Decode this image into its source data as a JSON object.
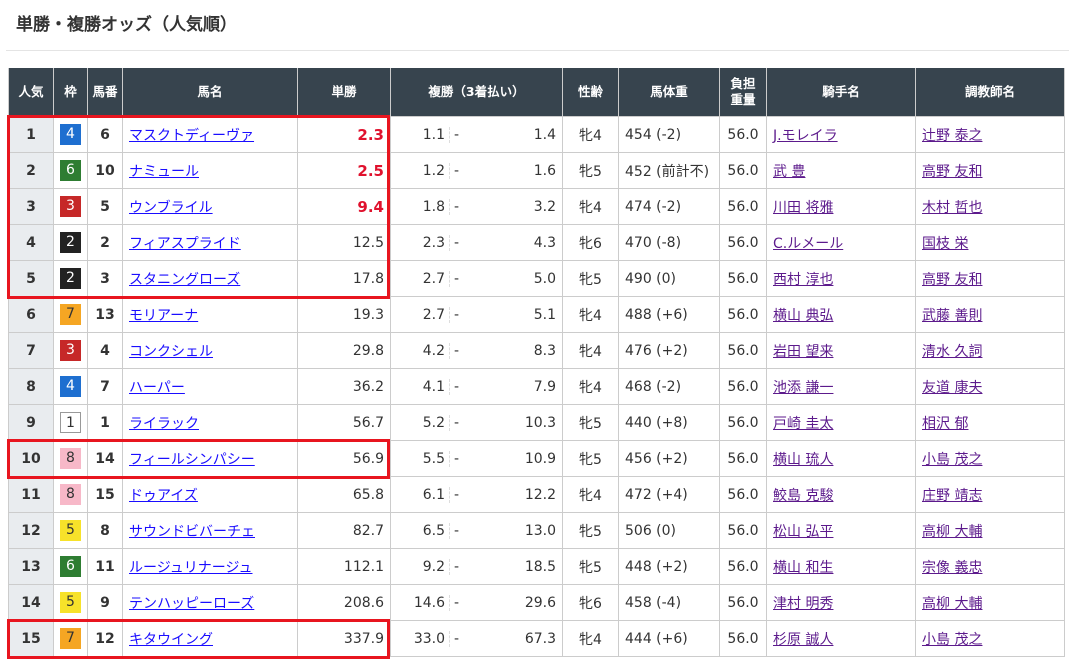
{
  "title": "単勝・複勝オッズ（人気順）",
  "headers": {
    "pop": "人気",
    "waku": "枠",
    "num": "馬番",
    "name": "馬名",
    "win": "単勝",
    "place": "複勝（3着払い）",
    "sexage": "性齢",
    "weight": "馬体重",
    "load1": "負担",
    "load2": "重量",
    "jockey": "騎手名",
    "trainer": "調教師名"
  },
  "waku_colors": {
    "1": "#ffffff",
    "2": "#222222",
    "3": "#c62828",
    "4": "#1e6fd0",
    "5": "#f7e22a",
    "6": "#2e7d32",
    "7": "#f5a623",
    "8": "#f7b8c8"
  },
  "highlight_color": "#e8151f",
  "highlighted_popularity": [
    1,
    2,
    3,
    4,
    5,
    10,
    15
  ],
  "rows": [
    {
      "pop": "1",
      "waku": "4",
      "num": "6",
      "name": "マスクトディーヴァ",
      "win": "2.3",
      "plo": "1.1",
      "phi": "1.4",
      "sexage": "牝4",
      "weight": "454 (-2)",
      "load": "56.0",
      "jockey": "J.モレイラ",
      "trainer": "辻野 泰之"
    },
    {
      "pop": "2",
      "waku": "6",
      "num": "10",
      "name": "ナミュール",
      "win": "2.5",
      "plo": "1.2",
      "phi": "1.6",
      "sexage": "牝5",
      "weight": "452 (前計不)",
      "load": "56.0",
      "jockey": "武 豊",
      "trainer": "高野 友和"
    },
    {
      "pop": "3",
      "waku": "3",
      "num": "5",
      "name": "ウンブライル",
      "win": "9.4",
      "plo": "1.8",
      "phi": "3.2",
      "sexage": "牝4",
      "weight": "474 (-2)",
      "load": "56.0",
      "jockey": "川田 将雅",
      "trainer": "木村 哲也"
    },
    {
      "pop": "4",
      "waku": "2",
      "num": "2",
      "name": "フィアスプライド",
      "win": "12.5",
      "plo": "2.3",
      "phi": "4.3",
      "sexage": "牝6",
      "weight": "470 (-8)",
      "load": "56.0",
      "jockey": "C.ルメール",
      "trainer": "国枝 栄"
    },
    {
      "pop": "5",
      "waku": "2",
      "num": "3",
      "name": "スタニングローズ",
      "win": "17.8",
      "plo": "2.7",
      "phi": "5.0",
      "sexage": "牝5",
      "weight": "490 (0)",
      "load": "56.0",
      "jockey": "西村 淳也",
      "trainer": "高野 友和"
    },
    {
      "pop": "6",
      "waku": "7",
      "num": "13",
      "name": "モリアーナ",
      "win": "19.3",
      "plo": "2.7",
      "phi": "5.1",
      "sexage": "牝4",
      "weight": "488 (+6)",
      "load": "56.0",
      "jockey": "横山 典弘",
      "trainer": "武藤 善則"
    },
    {
      "pop": "7",
      "waku": "3",
      "num": "4",
      "name": "コンクシェル",
      "win": "29.8",
      "plo": "4.2",
      "phi": "8.3",
      "sexage": "牝4",
      "weight": "476 (+2)",
      "load": "56.0",
      "jockey": "岩田 望来",
      "trainer": "清水 久詞"
    },
    {
      "pop": "8",
      "waku": "4",
      "num": "7",
      "name": "ハーパー",
      "win": "36.2",
      "plo": "4.1",
      "phi": "7.9",
      "sexage": "牝4",
      "weight": "468 (-2)",
      "load": "56.0",
      "jockey": "池添 謙一",
      "trainer": "友道 康夫"
    },
    {
      "pop": "9",
      "waku": "1",
      "num": "1",
      "name": "ライラック",
      "win": "56.7",
      "plo": "5.2",
      "phi": "10.3",
      "sexage": "牝5",
      "weight": "440 (+8)",
      "load": "56.0",
      "jockey": "戸崎 圭太",
      "trainer": "相沢 郁"
    },
    {
      "pop": "10",
      "waku": "8",
      "num": "14",
      "name": "フィールシンパシー",
      "win": "56.9",
      "plo": "5.5",
      "phi": "10.9",
      "sexage": "牝5",
      "weight": "456 (+2)",
      "load": "56.0",
      "jockey": "横山 琉人",
      "trainer": "小島 茂之"
    },
    {
      "pop": "11",
      "waku": "8",
      "num": "15",
      "name": "ドゥアイズ",
      "win": "65.8",
      "plo": "6.1",
      "phi": "12.2",
      "sexage": "牝4",
      "weight": "472 (+4)",
      "load": "56.0",
      "jockey": "鮫島 克駿",
      "trainer": "庄野 靖志"
    },
    {
      "pop": "12",
      "waku": "5",
      "num": "8",
      "name": "サウンドビバーチェ",
      "win": "82.7",
      "plo": "6.5",
      "phi": "13.0",
      "sexage": "牝5",
      "weight": "506 (0)",
      "load": "56.0",
      "jockey": "松山 弘平",
      "trainer": "高柳 大輔"
    },
    {
      "pop": "13",
      "waku": "6",
      "num": "11",
      "name": "ルージュリナージュ",
      "win": "112.1",
      "plo": "9.2",
      "phi": "18.5",
      "sexage": "牝5",
      "weight": "448 (+2)",
      "load": "56.0",
      "jockey": "横山 和生",
      "trainer": "宗像 義忠"
    },
    {
      "pop": "14",
      "waku": "5",
      "num": "9",
      "name": "テンハッピーローズ",
      "win": "208.6",
      "plo": "14.6",
      "phi": "29.6",
      "sexage": "牝6",
      "weight": "458 (-4)",
      "load": "56.0",
      "jockey": "津村 明秀",
      "trainer": "高柳 大輔"
    },
    {
      "pop": "15",
      "waku": "7",
      "num": "12",
      "name": "キタウイング",
      "win": "337.9",
      "plo": "33.0",
      "phi": "67.3",
      "sexage": "牝4",
      "weight": "444 (+6)",
      "load": "56.0",
      "jockey": "杉原 誠人",
      "trainer": "小島 茂之"
    }
  ]
}
